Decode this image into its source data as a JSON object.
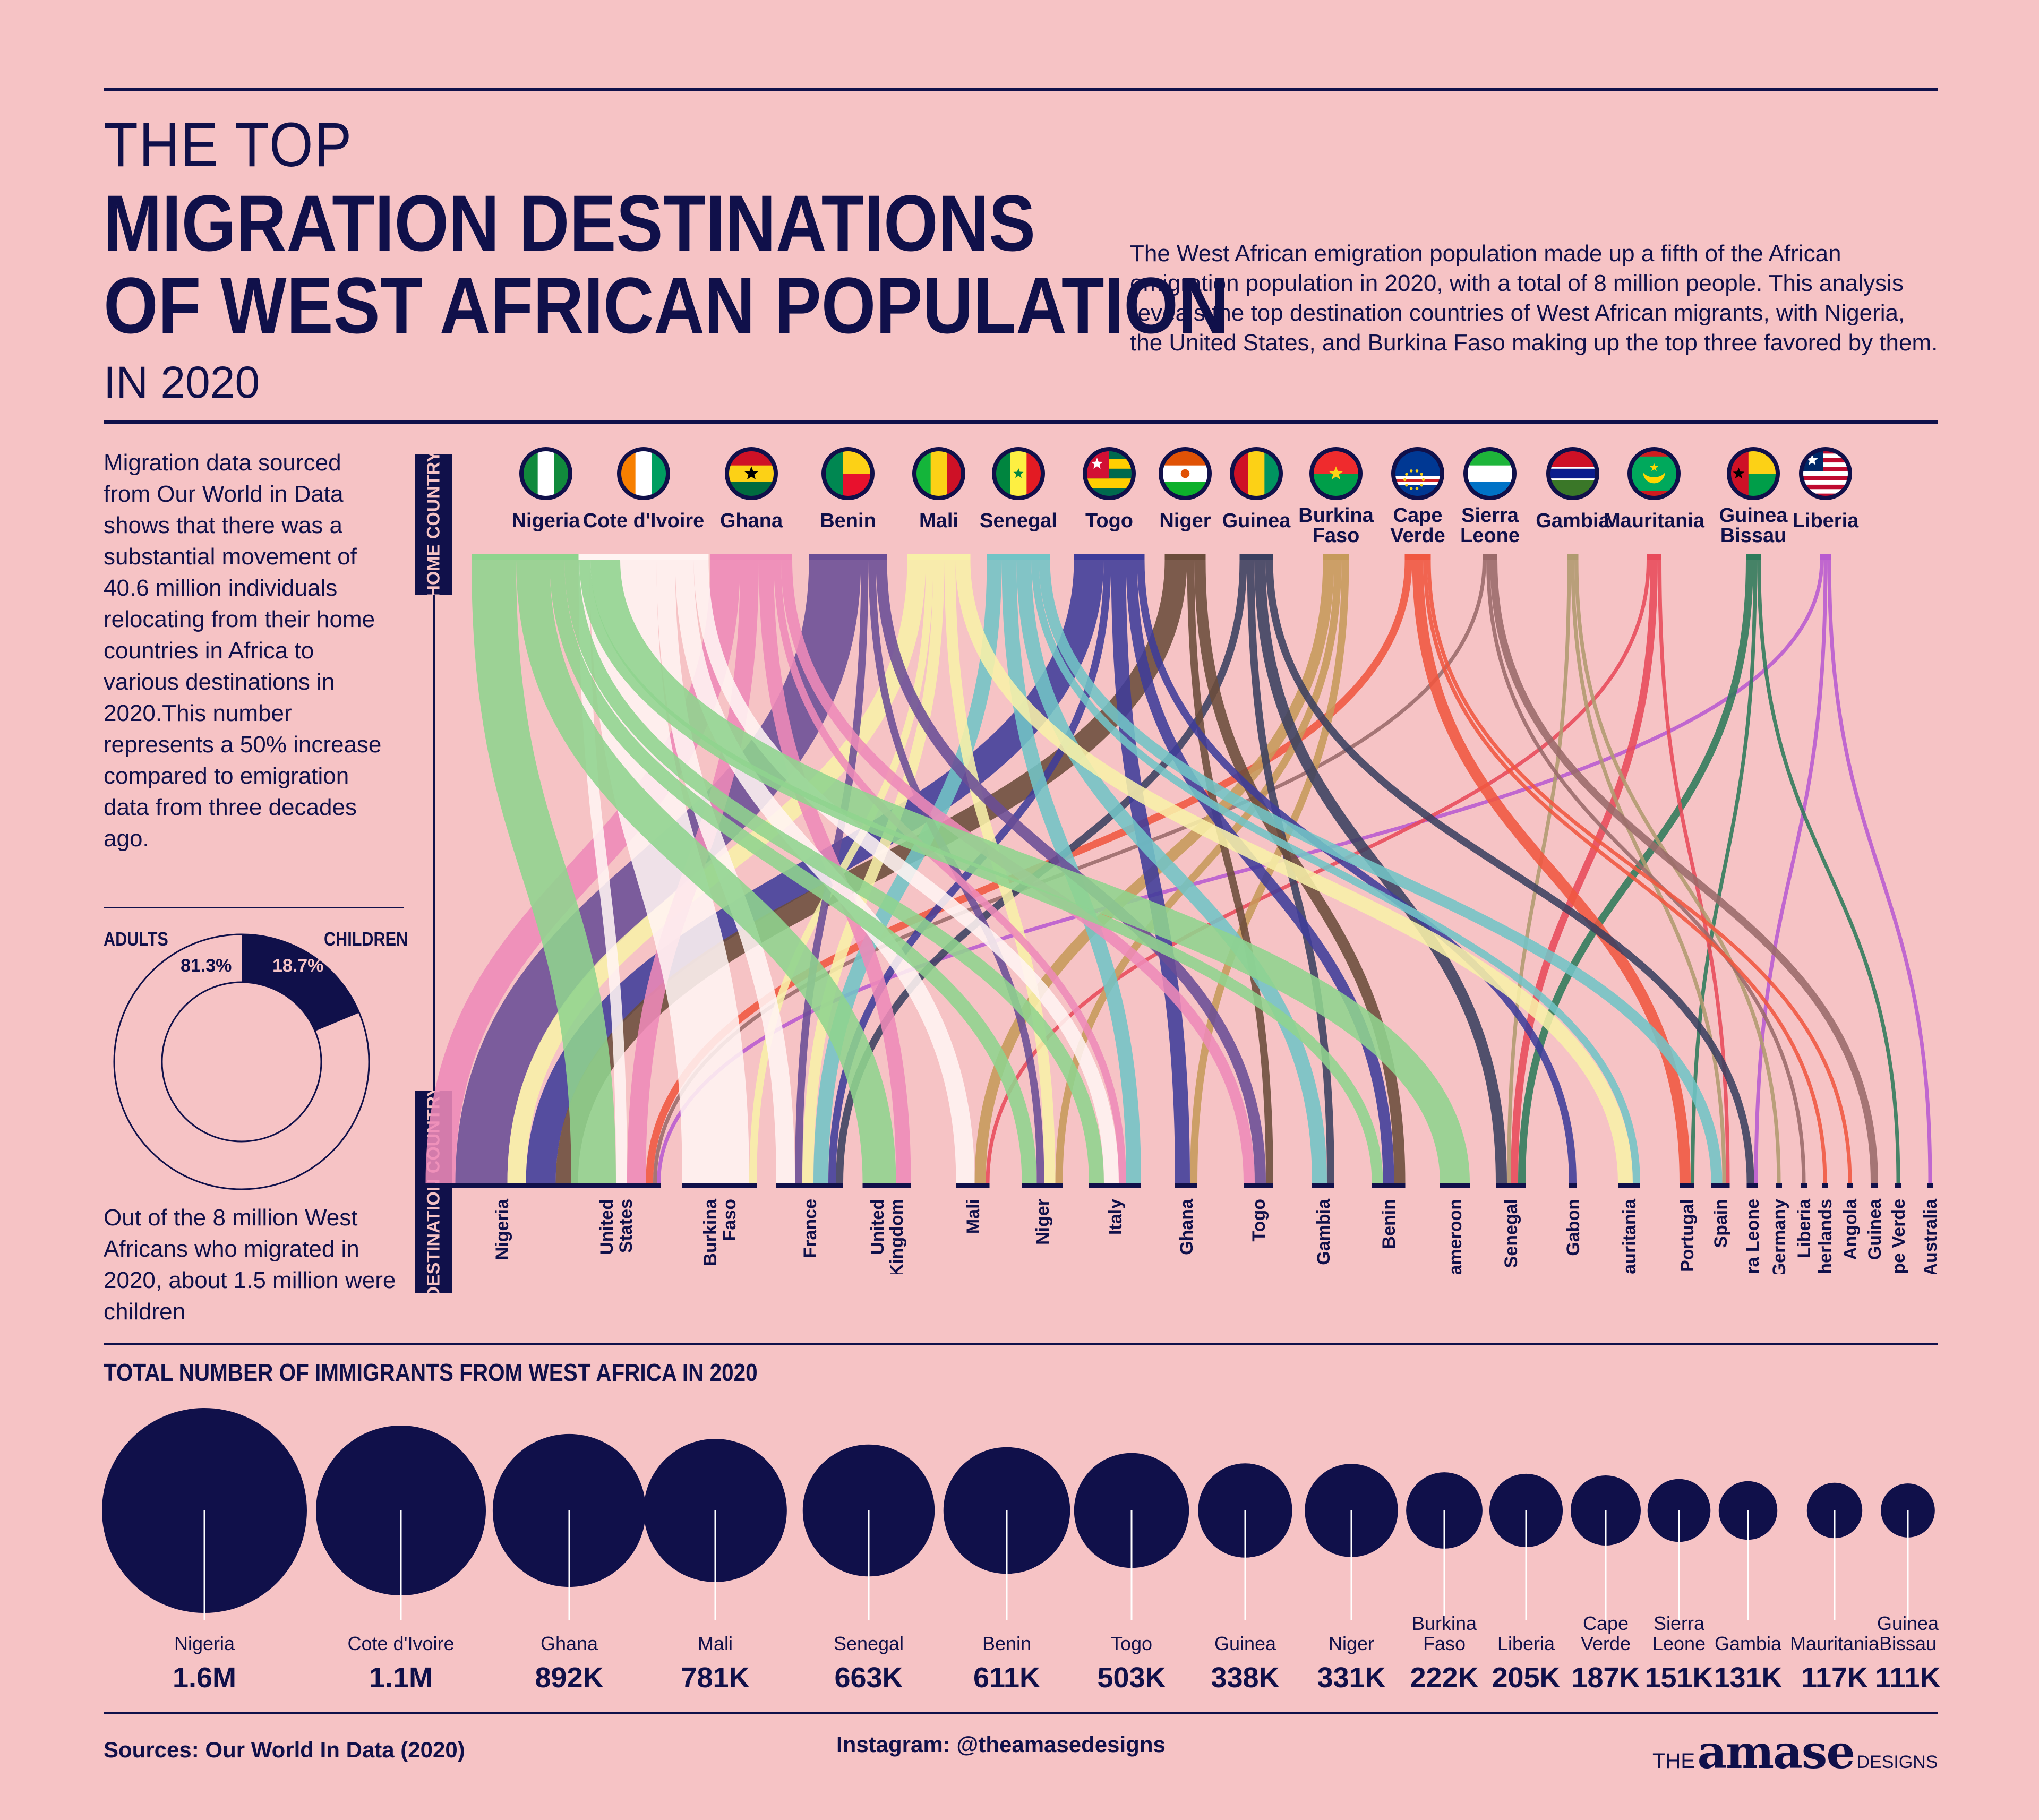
{
  "header": {
    "line1": "THE TOP",
    "line2": "MIGRATION DESTINATIONS",
    "line3": "OF WEST AFRICAN POPULATION",
    "line4": "IN 2020",
    "intro": "The West African emigration population made up a fifth of the African emigration population in 2020, with a total of 8 million people. This analysis reveals the top destination countries of West African migrants, with Nigeria, the United States, and Burkina Faso making up the top three favored by them."
  },
  "sidebar": {
    "text1": "Migration data sourced from Our World in Data shows that there was a substantial movement of 40.6 million individuals relocating from their home countries in Africa to various destinations in 2020.This number represents a 50% increase compared to emigration data from three decades ago.",
    "text2": "Out of the 8 million West Africans who migrated in 2020, about 1.5 million were children",
    "donut": {
      "adults_label": "ADULTS",
      "children_label": "CHILDREN",
      "adults_pct_text": "81.3%",
      "children_pct_text": "18.7%",
      "children_share": 0.187
    }
  },
  "axis_labels": {
    "home": "HOME COUNTRY",
    "destination": "DESTINATION COUNTRY"
  },
  "colors": {
    "navy": "#10104a",
    "background": "#f6c3c5"
  },
  "chart_data": [
    {
      "type": "sankey",
      "home_countries": [
        {
          "name": "Nigeria",
          "lines": [
            "Nigeria"
          ],
          "color": "#8fd48e",
          "flag": "ng"
        },
        {
          "name": "Cote d'Ivoire",
          "lines": [
            "Cote d'Ivoire"
          ],
          "color": "#fff4f2",
          "flag": "ci"
        },
        {
          "name": "Ghana",
          "lines": [
            "Ghana"
          ],
          "color": "#ee8ab8",
          "flag": "gh"
        },
        {
          "name": "Benin",
          "lines": [
            "Benin"
          ],
          "color": "#6a4d96",
          "flag": "bj"
        },
        {
          "name": "Mali",
          "lines": [
            "Mali"
          ],
          "color": "#f8f0a8",
          "flag": "ml"
        },
        {
          "name": "Senegal",
          "lines": [
            "Senegal"
          ],
          "color": "#72c4c6",
          "flag": "sn"
        },
        {
          "name": "Togo",
          "lines": [
            "Togo"
          ],
          "color": "#3f3c9a",
          "flag": "tg"
        },
        {
          "name": "Niger",
          "lines": [
            "Niger"
          ],
          "color": "#6b4c3b",
          "flag": "ne"
        },
        {
          "name": "Guinea",
          "lines": [
            "Guinea"
          ],
          "color": "#3a4060",
          "flag": "gn"
        },
        {
          "name": "Burkina Faso",
          "lines": [
            "Burkina",
            "Faso"
          ],
          "color": "#c69a5a",
          "flag": "bf"
        },
        {
          "name": "Cape Verde",
          "lines": [
            "Cape",
            "Verde"
          ],
          "color": "#f05640",
          "flag": "cv"
        },
        {
          "name": "Sierra Leone",
          "lines": [
            "Sierra",
            "Leone"
          ],
          "color": "#9a6a6a",
          "flag": "sl"
        },
        {
          "name": "Gambia",
          "lines": [
            "Gambia"
          ],
          "color": "#b09a70",
          "flag": "gm"
        },
        {
          "name": "Mauritania",
          "lines": [
            "Mauritania"
          ],
          "color": "#e84a5a",
          "flag": "mr"
        },
        {
          "name": "Guinea Bissau",
          "lines": [
            "Guinea",
            "Bissau"
          ],
          "color": "#2e7a5a",
          "flag": "gw"
        },
        {
          "name": "Liberia",
          "lines": [
            "Liberia"
          ],
          "color": "#b85ad0",
          "flag": "lr"
        }
      ],
      "destination_countries": [
        {
          "name": "Nigeria",
          "lines": [
            "Nigeria"
          ]
        },
        {
          "name": "United States",
          "lines": [
            "United",
            "States"
          ]
        },
        {
          "name": "Burkina Faso",
          "lines": [
            "Burkina",
            "Faso"
          ]
        },
        {
          "name": "France",
          "lines": [
            "France"
          ]
        },
        {
          "name": "United Kingdom",
          "lines": [
            "United",
            "Kingdom"
          ]
        },
        {
          "name": "Mali",
          "lines": [
            "Mali"
          ]
        },
        {
          "name": "Niger",
          "lines": [
            "Niger"
          ]
        },
        {
          "name": "Italy",
          "lines": [
            "Italy"
          ]
        },
        {
          "name": "Ghana",
          "lines": [
            "Ghana"
          ]
        },
        {
          "name": "Togo",
          "lines": [
            "Togo"
          ]
        },
        {
          "name": "Gambia",
          "lines": [
            "Gambia"
          ]
        },
        {
          "name": "Benin",
          "lines": [
            "Benin"
          ]
        },
        {
          "name": "Cameroon",
          "lines": [
            "Cameroon"
          ]
        },
        {
          "name": "Senegal",
          "lines": [
            "Senegal"
          ]
        },
        {
          "name": "Gabon",
          "lines": [
            "Gabon"
          ]
        },
        {
          "name": "Mauritania",
          "lines": [
            "Mauritania"
          ]
        },
        {
          "name": "Portugal",
          "lines": [
            "Portugal"
          ]
        },
        {
          "name": "Spain",
          "lines": [
            "Spain"
          ]
        },
        {
          "name": "Sierra Leone",
          "lines": [
            "Sierra Leone"
          ]
        },
        {
          "name": "Germany",
          "lines": [
            "Germany"
          ]
        },
        {
          "name": "Liberia",
          "lines": [
            "Liberia"
          ]
        },
        {
          "name": "Netherlands",
          "lines": [
            "Netherlands"
          ]
        },
        {
          "name": "Angola",
          "lines": [
            "Angola"
          ]
        },
        {
          "name": "Guinea",
          "lines": [
            "Guinea"
          ]
        },
        {
          "name": "Cape Verde",
          "lines": [
            "Cape Verde"
          ]
        },
        {
          "name": "Australia",
          "lines": [
            "Australia"
          ]
        }
      ],
      "flows": [
        {
          "from": "Nigeria",
          "to": "United States",
          "value": 12
        },
        {
          "from": "Nigeria",
          "to": "United Kingdom",
          "value": 9
        },
        {
          "from": "Nigeria",
          "to": "Cameroon",
          "value": 8
        },
        {
          "from": "Nigeria",
          "to": "Niger",
          "value": 4
        },
        {
          "from": "Nigeria",
          "to": "Italy",
          "value": 4
        },
        {
          "from": "Nigeria",
          "to": "Benin",
          "value": 3
        },
        {
          "from": "Cote d'Ivoire",
          "to": "Burkina Faso",
          "value": 18
        },
        {
          "from": "Cote d'Ivoire",
          "to": "Mali",
          "value": 5
        },
        {
          "from": "Cote d'Ivoire",
          "to": "France",
          "value": 5
        },
        {
          "from": "Cote d'Ivoire",
          "to": "Italy",
          "value": 4
        },
        {
          "from": "Cote d'Ivoire",
          "to": "United States",
          "value": 3
        },
        {
          "from": "Ghana",
          "to": "Nigeria",
          "value": 8
        },
        {
          "from": "Ghana",
          "to": "United States",
          "value": 5
        },
        {
          "from": "Ghana",
          "to": "United Kingdom",
          "value": 4
        },
        {
          "from": "Ghana",
          "to": "Togo",
          "value": 3
        },
        {
          "from": "Ghana",
          "to": "Italy",
          "value": 2
        },
        {
          "from": "Benin",
          "to": "Nigeria",
          "value": 14
        },
        {
          "from": "Benin",
          "to": "Togo",
          "value": 3
        },
        {
          "from": "Benin",
          "to": "Niger",
          "value": 2
        },
        {
          "from": "Benin",
          "to": "France",
          "value": 2
        },
        {
          "from": "Mali",
          "to": "Mauritania",
          "value": 4
        },
        {
          "from": "Mali",
          "to": "Nigeria",
          "value": 5
        },
        {
          "from": "Mali",
          "to": "France",
          "value": 3
        },
        {
          "from": "Mali",
          "to": "Niger",
          "value": 3
        },
        {
          "from": "Mali",
          "to": "Burkina Faso",
          "value": 2
        },
        {
          "from": "Senegal",
          "to": "Gambia",
          "value": 4
        },
        {
          "from": "Senegal",
          "to": "France",
          "value": 4
        },
        {
          "from": "Senegal",
          "to": "Italy",
          "value": 4
        },
        {
          "from": "Senegal",
          "to": "Spain",
          "value": 3
        },
        {
          "from": "Senegal",
          "to": "Mauritania",
          "value": 2
        },
        {
          "from": "Togo",
          "to": "Nigeria",
          "value": 8
        },
        {
          "from": "Togo",
          "to": "Ghana",
          "value": 4
        },
        {
          "from": "Togo",
          "to": "Benin",
          "value": 3
        },
        {
          "from": "Togo",
          "to": "Gabon",
          "value": 2
        },
        {
          "from": "Togo",
          "to": "France",
          "value": 2
        },
        {
          "from": "Niger",
          "to": "Nigeria",
          "value": 6
        },
        {
          "from": "Niger",
          "to": "Benin",
          "value": 3
        },
        {
          "from": "Niger",
          "to": "Togo",
          "value": 2
        },
        {
          "from": "Guinea",
          "to": "Senegal",
          "value": 3
        },
        {
          "from": "Guinea",
          "to": "Sierra Leone",
          "value": 2
        },
        {
          "from": "Guinea",
          "to": "Gambia",
          "value": 2
        },
        {
          "from": "Guinea",
          "to": "France",
          "value": 2
        },
        {
          "from": "Burkina Faso",
          "to": "Mali",
          "value": 3
        },
        {
          "from": "Burkina Faso",
          "to": "Niger",
          "value": 2
        },
        {
          "from": "Burkina Faso",
          "to": "Ghana",
          "value": 2
        },
        {
          "from": "Cape Verde",
          "to": "Portugal",
          "value": 3
        },
        {
          "from": "Cape Verde",
          "to": "United States",
          "value": 2
        },
        {
          "from": "Cape Verde",
          "to": "Angola",
          "value": 1
        },
        {
          "from": "Cape Verde",
          "to": "Netherlands",
          "value": 1
        },
        {
          "from": "Sierra Leone",
          "to": "Guinea",
          "value": 2
        },
        {
          "from": "Sierra Leone",
          "to": "Liberia",
          "value": 1
        },
        {
          "from": "Sierra Leone",
          "to": "United States",
          "value": 1
        },
        {
          "from": "Gambia",
          "to": "Senegal",
          "value": 1
        },
        {
          "from": "Gambia",
          "to": "Spain",
          "value": 1
        },
        {
          "from": "Gambia",
          "to": "Germany",
          "value": 1
        },
        {
          "from": "Mauritania",
          "to": "Senegal",
          "value": 2
        },
        {
          "from": "Mauritania",
          "to": "Spain",
          "value": 1
        },
        {
          "from": "Mauritania",
          "to": "Mali",
          "value": 1
        },
        {
          "from": "Guinea Bissau",
          "to": "Senegal",
          "value": 2
        },
        {
          "from": "Guinea Bissau",
          "to": "Portugal",
          "value": 1
        },
        {
          "from": "Guinea Bissau",
          "to": "Cape Verde",
          "value": 1
        },
        {
          "from": "Liberia",
          "to": "United States",
          "value": 1
        },
        {
          "from": "Liberia",
          "to": "Sierra Leone",
          "value": 1
        },
        {
          "from": "Liberia",
          "to": "Australia",
          "value": 1
        }
      ]
    },
    {
      "type": "bubble",
      "title": "TOTAL NUMBER OF IMMIGRANTS FROM WEST AFRICA IN 2020",
      "items": [
        {
          "name": "Nigeria",
          "lines": [
            "Nigeria"
          ],
          "value": 1600000,
          "label": "1.6M"
        },
        {
          "name": "Cote d'Ivoire",
          "lines": [
            "Cote d'Ivoire"
          ],
          "value": 1100000,
          "label": "1.1M"
        },
        {
          "name": "Ghana",
          "lines": [
            "Ghana"
          ],
          "value": 892000,
          "label": "892K"
        },
        {
          "name": "Mali",
          "lines": [
            "Mali"
          ],
          "value": 781000,
          "label": "781K"
        },
        {
          "name": "Senegal",
          "lines": [
            "Senegal"
          ],
          "value": 663000,
          "label": "663K"
        },
        {
          "name": "Benin",
          "lines": [
            "Benin"
          ],
          "value": 611000,
          "label": "611K"
        },
        {
          "name": "Togo",
          "lines": [
            "Togo"
          ],
          "value": 503000,
          "label": "503K"
        },
        {
          "name": "Guinea",
          "lines": [
            "Guinea"
          ],
          "value": 338000,
          "label": "338K"
        },
        {
          "name": "Niger",
          "lines": [
            "Niger"
          ],
          "value": 331000,
          "label": "331K"
        },
        {
          "name": "Burkina Faso",
          "lines": [
            "Burkina",
            "Faso"
          ],
          "value": 222000,
          "label": "222K"
        },
        {
          "name": "Liberia",
          "lines": [
            "Liberia"
          ],
          "value": 205000,
          "label": "205K"
        },
        {
          "name": "Cape Verde",
          "lines": [
            "Cape",
            "Verde"
          ],
          "value": 187000,
          "label": "187K"
        },
        {
          "name": "Sierra Leone",
          "lines": [
            "Sierra",
            "Leone"
          ],
          "value": 151000,
          "label": "151K"
        },
        {
          "name": "Gambia",
          "lines": [
            "Gambia"
          ],
          "value": 131000,
          "label": "131K"
        },
        {
          "name": "Mauritania",
          "lines": [
            "Mauritania"
          ],
          "value": 117000,
          "label": "117K"
        },
        {
          "name": "Guinea Bissau",
          "lines": [
            "Guinea",
            "Bissau"
          ],
          "value": 111000,
          "label": "111K"
        }
      ]
    }
  ],
  "footer": {
    "sources": "Sources: Our World In Data (2020)",
    "instagram": "Instagram: @theamasedesigns",
    "brand_the": "THE",
    "brand_name": "amase",
    "brand_designs": "DESIGNS"
  }
}
